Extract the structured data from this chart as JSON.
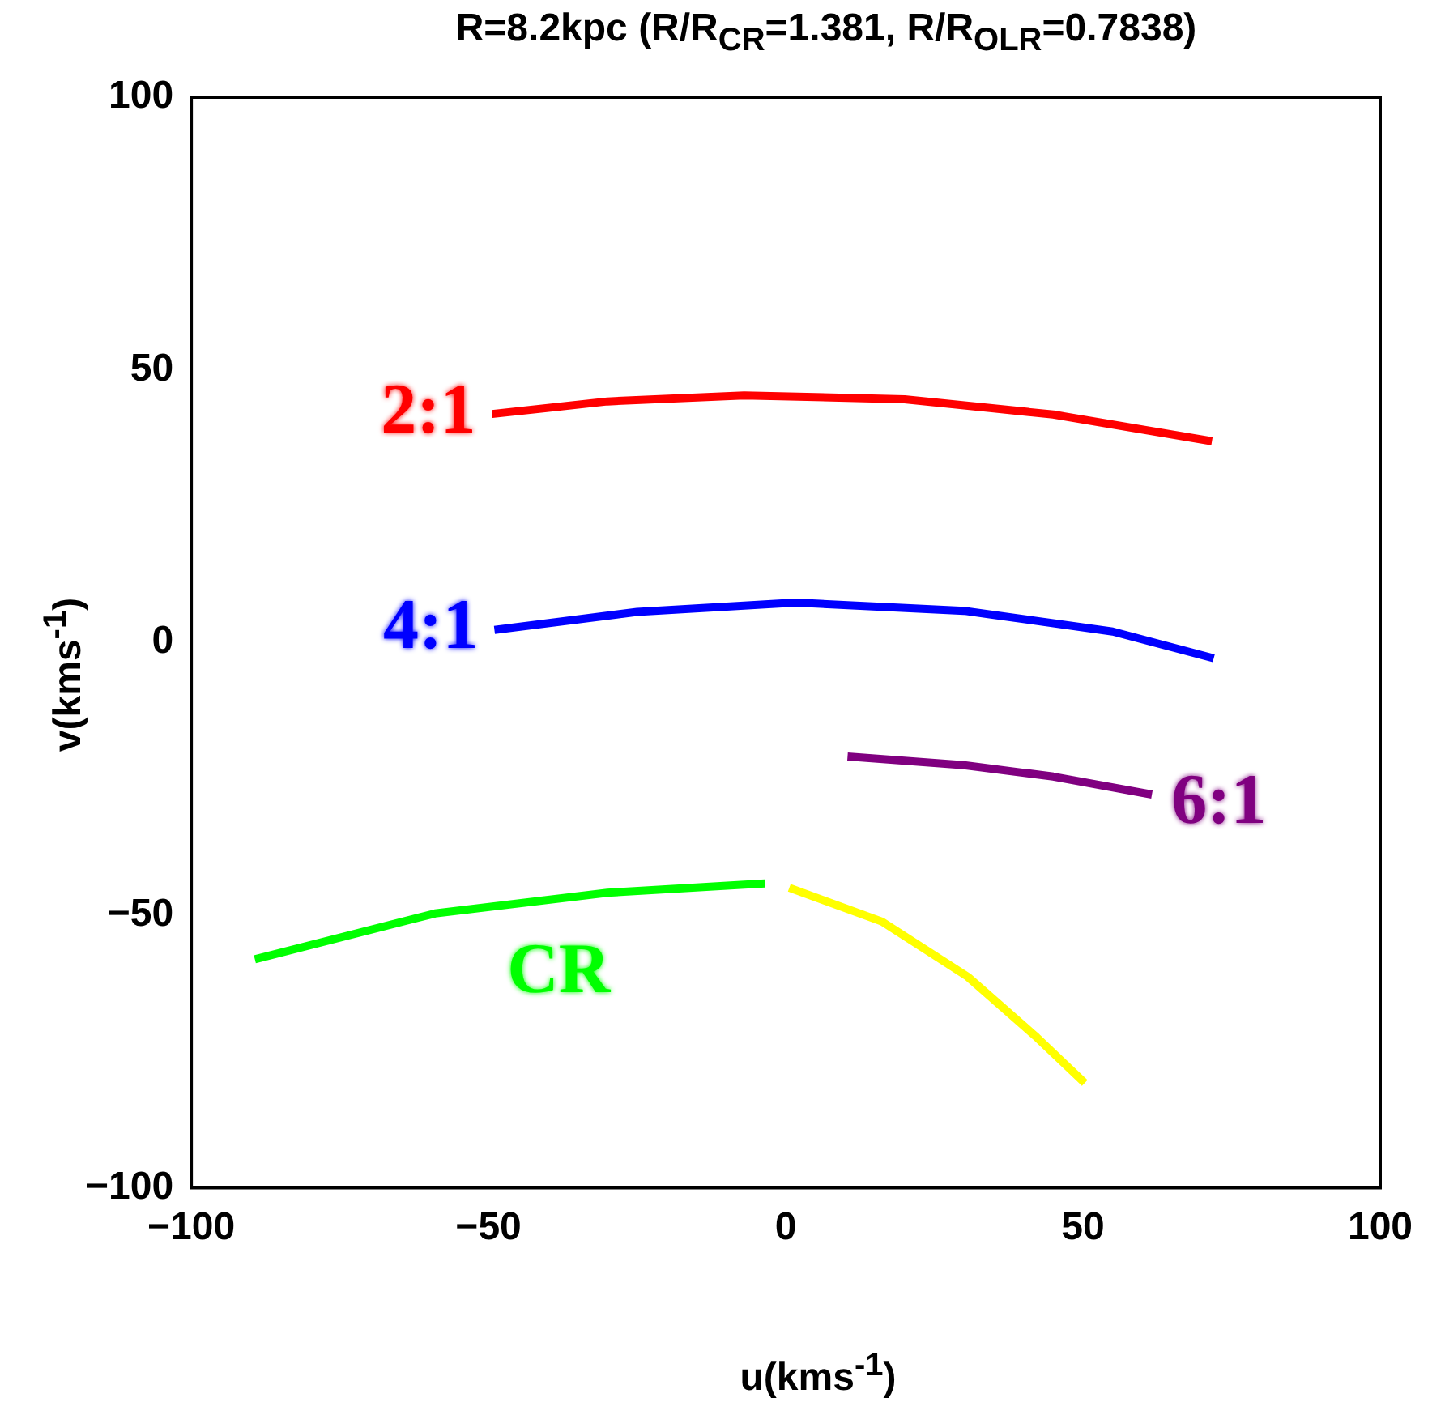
{
  "chart_data": {
    "type": "line",
    "title": "R=8.2kpc (R/R$_{CR}$=1.381, R/R$_{OLR}$=0.7838)",
    "xlabel": "u(kms$^{-1}$)",
    "ylabel": "v(kms$^{-1}$)",
    "xlim": [
      -100,
      100
    ],
    "ylim": [
      -100,
      100
    ],
    "xticks": [
      -100,
      -50,
      0,
      50,
      100
    ],
    "yticks": [
      -100,
      -50,
      0,
      50,
      100
    ],
    "grid": false,
    "legend": false,
    "marker": "none",
    "line_style": "solid",
    "series": [
      {
        "name": "2:1",
        "color": "#ff0000",
        "x": [
          -49.4,
          -30,
          -7,
          20,
          45,
          71.7
        ],
        "values": [
          41.9,
          44.2,
          45.3,
          44.6,
          41.8,
          36.9
        ]
      },
      {
        "name": "4:1",
        "color": "#0000ff",
        "x": [
          -49,
          -25,
          1.7,
          30,
          55,
          72
        ],
        "values": [
          2.3,
          5.6,
          7.3,
          5.8,
          2,
          -2.9
        ]
      },
      {
        "name": "6:1",
        "color": "#800080",
        "x": [
          10.4,
          30,
          45,
          61.6
        ],
        "values": [
          -20.9,
          -22.5,
          -24.6,
          -27.9
        ]
      },
      {
        "name": "CR",
        "color": "#00ff00",
        "x": [
          -89.3,
          -59,
          -30,
          -3.5
        ],
        "values": [
          -58.1,
          -49.7,
          -45.9,
          -44.2
        ]
      },
      {
        "color": "#ffff00",
        "x": [
          0.6,
          16.2,
          30.6,
          42.2,
          50.3
        ],
        "values": [
          -45,
          -51.2,
          -61.3,
          -72.4,
          -80.8
        ]
      }
    ]
  }
}
